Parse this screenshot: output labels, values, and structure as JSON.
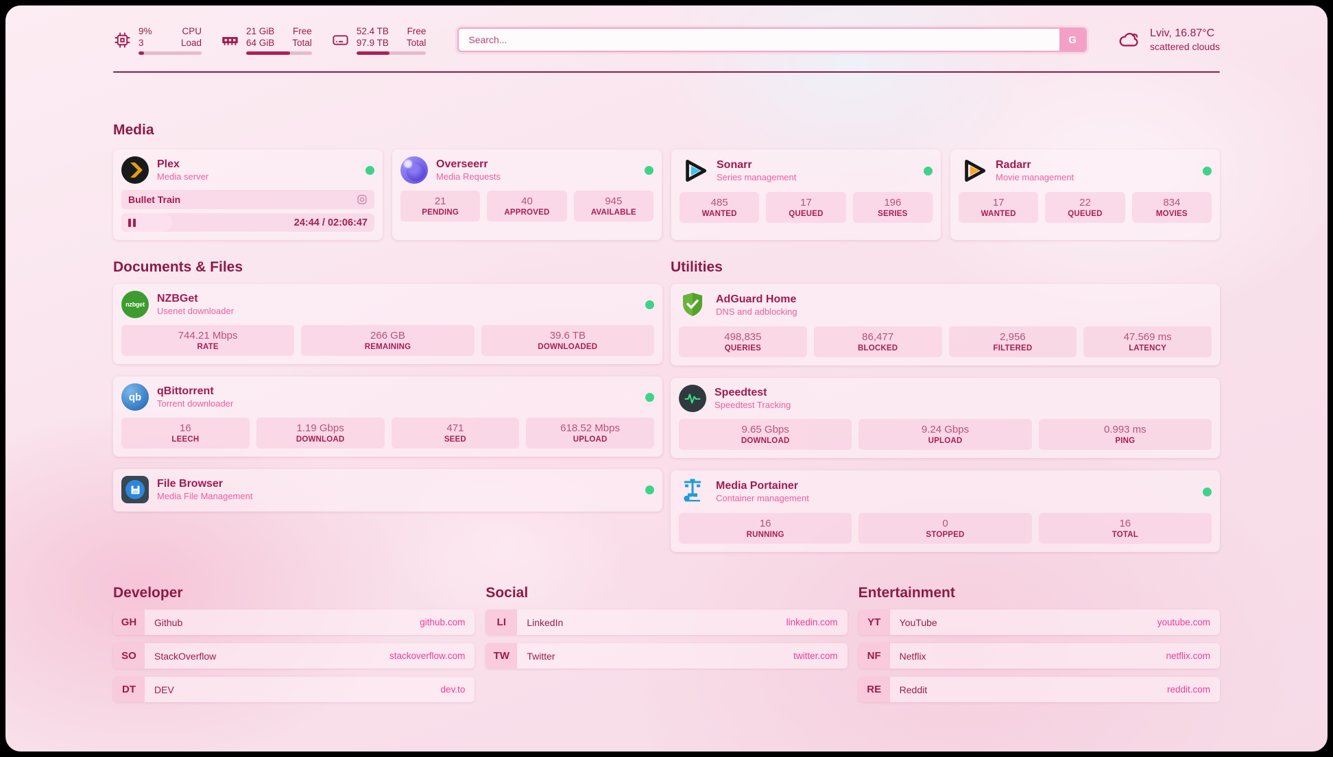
{
  "topbar": {
    "widgets": [
      {
        "id": "cpu",
        "icon": "cpu-icon",
        "rows": [
          {
            "value": "9%",
            "label": "CPU"
          },
          {
            "value": "3",
            "label": "Load"
          }
        ],
        "progress_pct": 9
      },
      {
        "id": "memory",
        "icon": "memory-icon",
        "rows": [
          {
            "value": "21 GiB",
            "label": "Free"
          },
          {
            "value": "64 GiB",
            "label": "Total"
          }
        ],
        "progress_pct": 67
      },
      {
        "id": "disk",
        "icon": "disk-icon",
        "rows": [
          {
            "value": "52.4 TB",
            "label": "Free"
          },
          {
            "value": "97.9 TB",
            "label": "Total"
          }
        ],
        "progress_pct": 47
      }
    ],
    "search": {
      "placeholder": "Search...",
      "button_label": "G"
    },
    "weather": {
      "location": "Lviv, 16.87°C",
      "condition": "scattered clouds"
    }
  },
  "sections": {
    "media": {
      "title": "Media",
      "services": [
        {
          "name": "Plex",
          "subtitle": "Media server",
          "status": "online",
          "now_playing": {
            "title": "Bullet Train",
            "time": "24:44 / 02:06:47",
            "progress_pct": 20
          }
        },
        {
          "name": "Overseerr",
          "subtitle": "Media Requests",
          "status": "online",
          "stats": [
            {
              "value": "21",
              "label": "PENDING"
            },
            {
              "value": "40",
              "label": "APPROVED"
            },
            {
              "value": "945",
              "label": "AVAILABLE"
            }
          ]
        },
        {
          "name": "Sonarr",
          "subtitle": "Series management",
          "status": "online",
          "stats": [
            {
              "value": "485",
              "label": "WANTED"
            },
            {
              "value": "17",
              "label": "QUEUED"
            },
            {
              "value": "196",
              "label": "SERIES"
            }
          ]
        },
        {
          "name": "Radarr",
          "subtitle": "Movie management",
          "status": "online",
          "stats": [
            {
              "value": "17",
              "label": "WANTED"
            },
            {
              "value": "22",
              "label": "QUEUED"
            },
            {
              "value": "834",
              "label": "MOVIES"
            }
          ]
        }
      ]
    },
    "documents": {
      "title": "Documents & Files",
      "services": [
        {
          "name": "NZBGet",
          "subtitle": "Usenet downloader",
          "status": "online",
          "stats": [
            {
              "value": "744.21 Mbps",
              "label": "RATE"
            },
            {
              "value": "266 GB",
              "label": "REMAINING"
            },
            {
              "value": "39.6 TB",
              "label": "DOWNLOADED"
            }
          ]
        },
        {
          "name": "qBittorrent",
          "subtitle": "Torrent downloader",
          "status": "online",
          "stats": [
            {
              "value": "16",
              "label": "LEECH"
            },
            {
              "value": "1.19 Gbps",
              "label": "DOWNLOAD"
            },
            {
              "value": "471",
              "label": "SEED"
            },
            {
              "value": "618.52 Mbps",
              "label": "UPLOAD"
            }
          ]
        },
        {
          "name": "File Browser",
          "subtitle": "Media File Management",
          "status": "online"
        }
      ]
    },
    "utilities": {
      "title": "Utilities",
      "services": [
        {
          "name": "AdGuard Home",
          "subtitle": "DNS and adblocking",
          "stats": [
            {
              "value": "498,835",
              "label": "QUERIES"
            },
            {
              "value": "86,477",
              "label": "BLOCKED"
            },
            {
              "value": "2,956",
              "label": "FILTERED"
            },
            {
              "value": "47.569 ms",
              "label": "LATENCY"
            }
          ]
        },
        {
          "name": "Speedtest",
          "subtitle": "Speedtest Tracking",
          "stats": [
            {
              "value": "9.65 Gbps",
              "label": "DOWNLOAD"
            },
            {
              "value": "9.24 Gbps",
              "label": "UPLOAD"
            },
            {
              "value": "0.993 ms",
              "label": "PING"
            }
          ]
        },
        {
          "name": "Media Portainer",
          "subtitle": "Container management",
          "status": "online",
          "stats": [
            {
              "value": "16",
              "label": "RUNNING"
            },
            {
              "value": "0",
              "label": "STOPPED"
            },
            {
              "value": "16",
              "label": "TOTAL"
            }
          ]
        }
      ]
    }
  },
  "bookmarks": [
    {
      "title": "Developer",
      "links": [
        {
          "abbr": "GH",
          "label": "Github",
          "url": "github.com"
        },
        {
          "abbr": "SO",
          "label": "StackOverflow",
          "url": "stackoverflow.com"
        },
        {
          "abbr": "DT",
          "label": "DEV",
          "url": "dev.to"
        }
      ]
    },
    {
      "title": "Social",
      "links": [
        {
          "abbr": "LI",
          "label": "LinkedIn",
          "url": "linkedin.com"
        },
        {
          "abbr": "TW",
          "label": "Twitter",
          "url": "twitter.com"
        }
      ]
    },
    {
      "title": "Entertainment",
      "links": [
        {
          "abbr": "YT",
          "label": "YouTube",
          "url": "youtube.com"
        },
        {
          "abbr": "NF",
          "label": "Netflix",
          "url": "netflix.com"
        },
        {
          "abbr": "RE",
          "label": "Reddit",
          "url": "reddit.com"
        }
      ]
    }
  ],
  "colors": {
    "accent": "#a01a52",
    "subtitle_pink": "#ec5f9f",
    "status_online": "#3ed389",
    "divider": "#8d1a47"
  }
}
